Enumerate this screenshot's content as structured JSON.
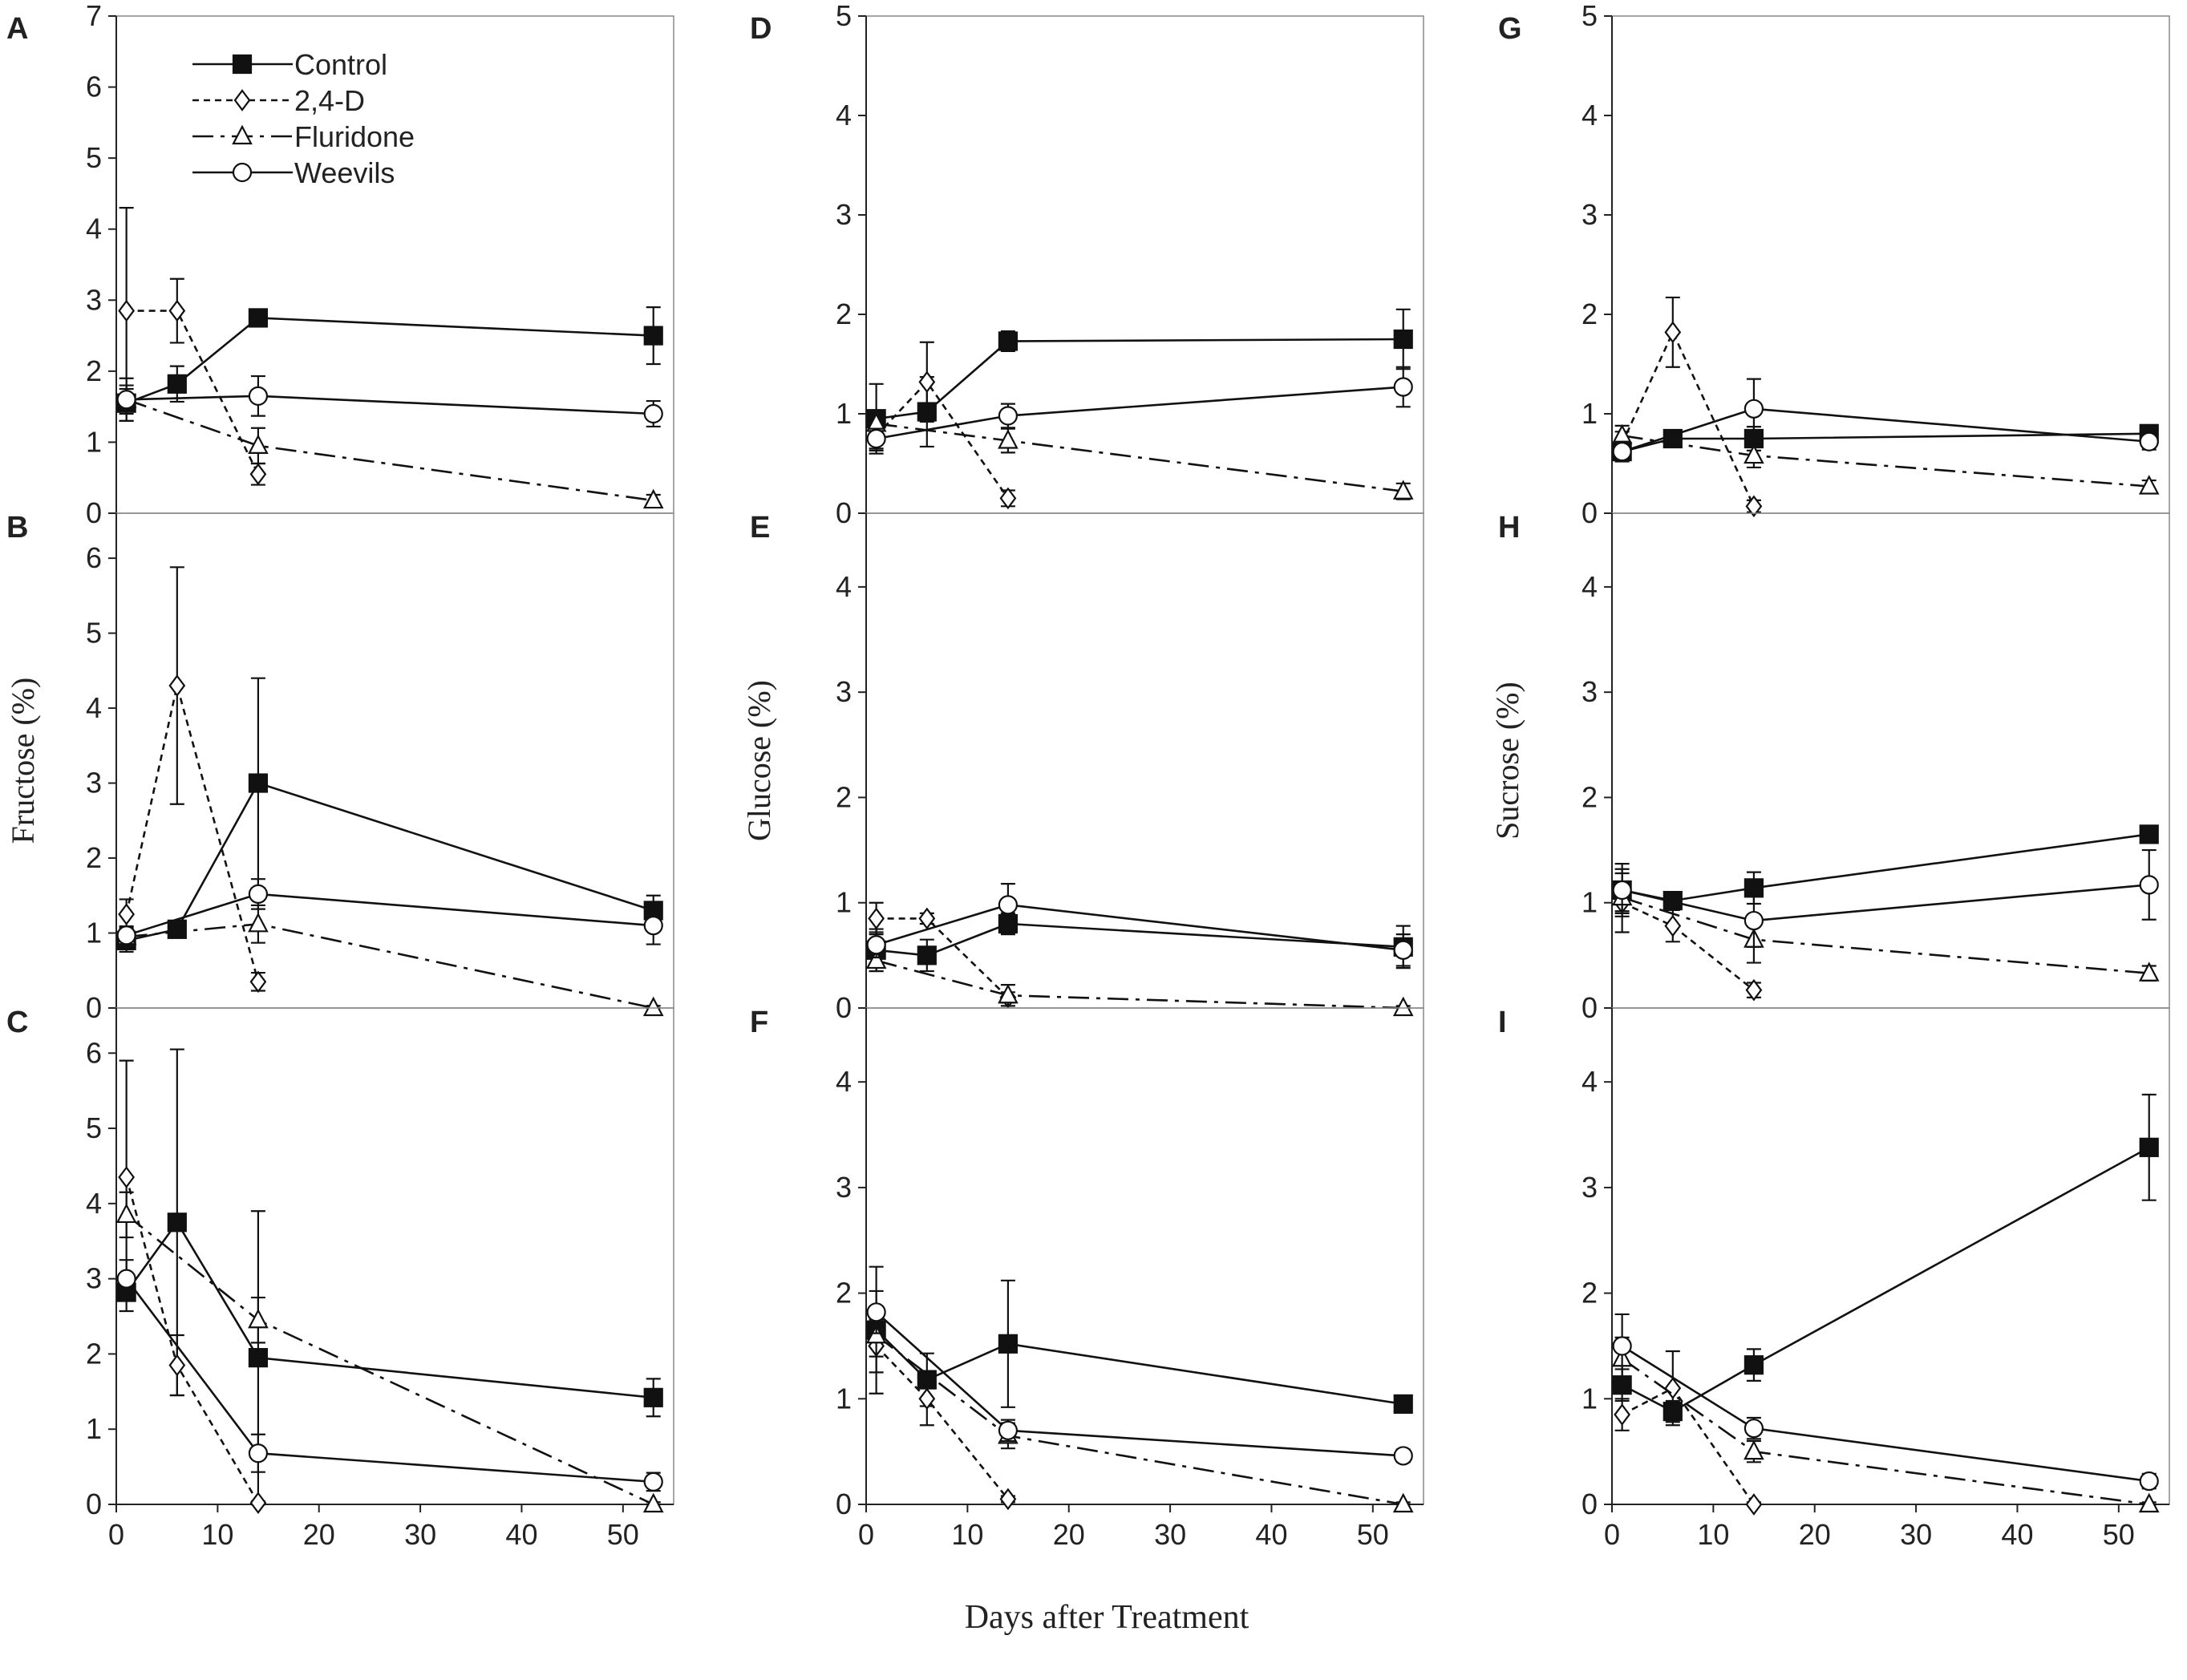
{
  "figure": {
    "xlabel": "Days after Treatment",
    "legend": [
      "Control",
      "2,4-D",
      "Fluridone",
      "Weevils"
    ]
  },
  "chart_data": [
    {
      "type": "line",
      "panel": "A",
      "sugar": "Fructose",
      "ylabel": "",
      "ylim": [
        0,
        7
      ],
      "yticks": [
        "0",
        "1",
        "2",
        "3",
        "4",
        "5",
        "6",
        "7"
      ],
      "xlim": [
        0,
        55
      ],
      "xticks": [
        "0",
        "10",
        "20",
        "30",
        "40",
        "50"
      ],
      "series": [
        {
          "name": "Control",
          "x": [
            1,
            6,
            14,
            53
          ],
          "y": [
            1.55,
            1.82,
            2.75,
            2.5
          ],
          "err": [
            0.25,
            0.25,
            0.08,
            0.4
          ]
        },
        {
          "name": "2,4-D",
          "x": [
            1,
            6,
            14
          ],
          "y": [
            2.85,
            2.85,
            0.55
          ],
          "err": [
            1.45,
            0.45,
            0.15
          ]
        },
        {
          "name": "Fluridone",
          "x": [
            1,
            14,
            53
          ],
          "y": [
            1.6,
            0.95,
            0.18
          ],
          "err": [
            0.3,
            0.25,
            0.08
          ]
        },
        {
          "name": "Weevils",
          "x": [
            1,
            14,
            53
          ],
          "y": [
            1.6,
            1.65,
            1.4
          ],
          "err": [
            0.15,
            0.28,
            0.18
          ]
        }
      ]
    },
    {
      "type": "line",
      "panel": "B",
      "sugar": "Fructose",
      "ylabel": "Fructose (%)",
      "ylim": [
        0,
        6.6
      ],
      "yticks": [
        "0",
        "1",
        "2",
        "3",
        "4",
        "5",
        "6"
      ],
      "xlim": [
        0,
        55
      ],
      "xticks": [
        "0",
        "10",
        "20",
        "30",
        "40",
        "50"
      ],
      "series": [
        {
          "name": "Control",
          "x": [
            1,
            6,
            14,
            53
          ],
          "y": [
            0.9,
            1.05,
            3.0,
            1.3
          ],
          "err": [
            0.15,
            0.08,
            1.4,
            0.2
          ]
        },
        {
          "name": "2,4-D",
          "x": [
            1,
            6,
            14
          ],
          "y": [
            1.25,
            4.3,
            0.35
          ],
          "err": [
            0.2,
            1.58,
            0.12
          ]
        },
        {
          "name": "Fluridone",
          "x": [
            1,
            14,
            53
          ],
          "y": [
            0.95,
            1.12,
            0.0
          ],
          "err": [
            0.12,
            0.25,
            0.03
          ]
        },
        {
          "name": "Weevils",
          "x": [
            1,
            14,
            53
          ],
          "y": [
            0.97,
            1.52,
            1.1
          ],
          "err": [
            0.12,
            0.2,
            0.25
          ]
        }
      ]
    },
    {
      "type": "line",
      "panel": "C",
      "sugar": "Fructose",
      "ylabel": "",
      "ylim": [
        0,
        6.6
      ],
      "yticks": [
        "0",
        "1",
        "2",
        "3",
        "4",
        "5",
        "6"
      ],
      "xlim": [
        0,
        55
      ],
      "xticks": [
        "0",
        "10",
        "20",
        "30",
        "40",
        "50"
      ],
      "series": [
        {
          "name": "Control",
          "x": [
            1,
            6,
            14,
            53
          ],
          "y": [
            2.82,
            3.75,
            1.95,
            1.42
          ],
          "err": [
            0.25,
            2.3,
            1.95,
            0.25
          ]
        },
        {
          "name": "2,4-D",
          "x": [
            1,
            6,
            14
          ],
          "y": [
            4.35,
            1.85,
            0.02
          ],
          "err": [
            1.55,
            0.4,
            0.02
          ]
        },
        {
          "name": "Fluridone",
          "x": [
            1,
            14,
            53
          ],
          "y": [
            3.85,
            2.45,
            0.0
          ],
          "err": [
            0.3,
            0.3,
            0.03
          ]
        },
        {
          "name": "Weevils",
          "x": [
            1,
            14,
            53
          ],
          "y": [
            3.0,
            0.68,
            0.3
          ],
          "err": [
            0.25,
            0.25,
            0.12
          ]
        }
      ]
    },
    {
      "type": "line",
      "panel": "D",
      "sugar": "Glucose",
      "ylabel": "",
      "ylim": [
        0,
        5
      ],
      "yticks": [
        "0",
        "1",
        "2",
        "3",
        "4",
        "5"
      ],
      "xlim": [
        0,
        55
      ],
      "xticks": [
        "0",
        "10",
        "20",
        "30",
        "40",
        "50"
      ],
      "series": [
        {
          "name": "Control",
          "x": [
            1,
            6,
            14,
            53
          ],
          "y": [
            0.95,
            1.02,
            1.73,
            1.75
          ],
          "err": [
            0.35,
            0.35,
            0.1,
            0.3
          ]
        },
        {
          "name": "2,4-D",
          "x": [
            1,
            6,
            14
          ],
          "y": [
            0.78,
            1.32,
            0.15
          ],
          "err": [
            0.15,
            0.4,
            0.08
          ]
        },
        {
          "name": "Fluridone",
          "x": [
            1,
            14,
            53
          ],
          "y": [
            0.9,
            0.73,
            0.22
          ],
          "err": [
            0.1,
            0.12,
            0.08
          ]
        },
        {
          "name": "Weevils",
          "x": [
            1,
            14,
            53
          ],
          "y": [
            0.75,
            0.98,
            1.27
          ],
          "err": [
            0.1,
            0.12,
            0.2
          ]
        }
      ]
    },
    {
      "type": "line",
      "panel": "E",
      "sugar": "Glucose",
      "ylabel": "Glucose (%)",
      "ylim": [
        0,
        4.7
      ],
      "yticks": [
        "0",
        "1",
        "2",
        "3",
        "4"
      ],
      "xlim": [
        0,
        55
      ],
      "xticks": [
        "0",
        "10",
        "20",
        "30",
        "40",
        "50"
      ],
      "series": [
        {
          "name": "Control",
          "x": [
            1,
            6,
            14,
            53
          ],
          "y": [
            0.55,
            0.5,
            0.8,
            0.58
          ],
          "err": [
            0.2,
            0.15,
            0.1,
            0.2
          ]
        },
        {
          "name": "2,4-D",
          "x": [
            1,
            6,
            14
          ],
          "y": [
            0.85,
            0.85,
            0.1
          ],
          "err": [
            0.15,
            0.05,
            0.05
          ]
        },
        {
          "name": "Fluridone",
          "x": [
            1,
            14,
            53
          ],
          "y": [
            0.45,
            0.12,
            0.0
          ],
          "err": [
            0.1,
            0.1,
            0.02
          ]
        },
        {
          "name": "Weevils",
          "x": [
            1,
            14,
            53
          ],
          "y": [
            0.6,
            0.98,
            0.55
          ],
          "err": [
            0.12,
            0.2,
            0.15
          ]
        }
      ]
    },
    {
      "type": "line",
      "panel": "F",
      "sugar": "Glucose",
      "ylabel": "",
      "ylim": [
        0,
        4.7
      ],
      "yticks": [
        "0",
        "1",
        "2",
        "3",
        "4"
      ],
      "xlim": [
        0,
        55
      ],
      "xticks": [
        "0",
        "10",
        "20",
        "30",
        "40",
        "50"
      ],
      "series": [
        {
          "name": "Control",
          "x": [
            1,
            6,
            14,
            53
          ],
          "y": [
            1.65,
            1.18,
            1.52,
            0.95
          ],
          "err": [
            0.6,
            0.25,
            0.6,
            0.06
          ]
        },
        {
          "name": "2,4-D",
          "x": [
            1,
            6,
            14
          ],
          "y": [
            1.5,
            1.0,
            0.05
          ],
          "err": [
            0.25,
            0.25,
            0.03
          ]
        },
        {
          "name": "Fluridone",
          "x": [
            1,
            14,
            53
          ],
          "y": [
            1.6,
            0.65,
            0.0
          ],
          "err": [
            0.2,
            0.12,
            0.02
          ]
        },
        {
          "name": "Weevils",
          "x": [
            1,
            14,
            53
          ],
          "y": [
            1.82,
            0.7,
            0.46
          ],
          "err": [
            0.2,
            0.1,
            0.06
          ]
        }
      ]
    },
    {
      "type": "line",
      "panel": "G",
      "sugar": "Sucrose",
      "ylabel": "",
      "ylim": [
        0,
        5
      ],
      "yticks": [
        "0",
        "1",
        "2",
        "3",
        "4",
        "5"
      ],
      "xlim": [
        0,
        55
      ],
      "xticks": [
        "0",
        "10",
        "20",
        "30",
        "40",
        "50"
      ],
      "series": [
        {
          "name": "Control",
          "x": [
            1,
            6,
            14,
            53
          ],
          "y": [
            0.62,
            0.75,
            0.75,
            0.8
          ],
          "err": [
            0.08,
            0.05,
            0.12,
            0.06
          ]
        },
        {
          "name": "2,4-D",
          "x": [
            1,
            6,
            14
          ],
          "y": [
            0.7,
            1.82,
            0.07
          ],
          "err": [
            0.12,
            0.35,
            0.06
          ]
        },
        {
          "name": "Fluridone",
          "x": [
            1,
            14,
            53
          ],
          "y": [
            0.78,
            0.58,
            0.27
          ],
          "err": [
            0.1,
            0.12,
            0.06
          ]
        },
        {
          "name": "Weevils",
          "x": [
            1,
            14,
            53
          ],
          "y": [
            0.62,
            1.05,
            0.72
          ],
          "err": [
            0.1,
            0.3,
            0.08
          ]
        }
      ]
    },
    {
      "type": "line",
      "panel": "H",
      "sugar": "Sucrose",
      "ylabel": "Sucrose (%)",
      "ylim": [
        0,
        4.7
      ],
      "yticks": [
        "0",
        "1",
        "2",
        "3",
        "4"
      ],
      "xlim": [
        0,
        55
      ],
      "xticks": [
        "0",
        "10",
        "20",
        "30",
        "40",
        "50"
      ],
      "series": [
        {
          "name": "Control",
          "x": [
            1,
            6,
            14,
            53
          ],
          "y": [
            1.12,
            1.02,
            1.14,
            1.65
          ],
          "err": [
            0.25,
            0.07,
            0.15,
            0.08
          ]
        },
        {
          "name": "2,4-D",
          "x": [
            1,
            6,
            14
          ],
          "y": [
            1.0,
            0.78,
            0.17
          ],
          "err": [
            0.28,
            0.15,
            0.07
          ]
        },
        {
          "name": "Fluridone",
          "x": [
            1,
            14,
            53
          ],
          "y": [
            1.05,
            0.65,
            0.33
          ],
          "err": [
            0.15,
            0.22,
            0.07
          ]
        },
        {
          "name": "Weevils",
          "x": [
            1,
            14,
            53
          ],
          "y": [
            1.12,
            0.83,
            1.17
          ],
          "err": [
            0.2,
            0.25,
            0.33
          ]
        }
      ]
    },
    {
      "type": "line",
      "panel": "I",
      "sugar": "Sucrose",
      "ylabel": "",
      "ylim": [
        0,
        4.7
      ],
      "yticks": [
        "0",
        "1",
        "2",
        "3",
        "4"
      ],
      "xlim": [
        0,
        55
      ],
      "xticks": [
        "0",
        "10",
        "20",
        "30",
        "40",
        "50"
      ],
      "series": [
        {
          "name": "Control",
          "x": [
            1,
            6,
            14,
            53
          ],
          "y": [
            1.13,
            0.88,
            1.32,
            3.38
          ],
          "err": [
            0.15,
            0.1,
            0.15,
            0.5
          ]
        },
        {
          "name": "2,4-D",
          "x": [
            1,
            6,
            14
          ],
          "y": [
            0.85,
            1.1,
            0.0
          ],
          "err": [
            0.15,
            0.35,
            0.02
          ]
        },
        {
          "name": "Fluridone",
          "x": [
            1,
            14,
            53
          ],
          "y": [
            1.38,
            0.5,
            0.0
          ],
          "err": [
            0.2,
            0.1,
            0.02
          ]
        },
        {
          "name": "Weevils",
          "x": [
            1,
            14,
            53
          ],
          "y": [
            1.5,
            0.72,
            0.22
          ],
          "err": [
            0.3,
            0.1,
            0.07
          ]
        }
      ]
    }
  ]
}
